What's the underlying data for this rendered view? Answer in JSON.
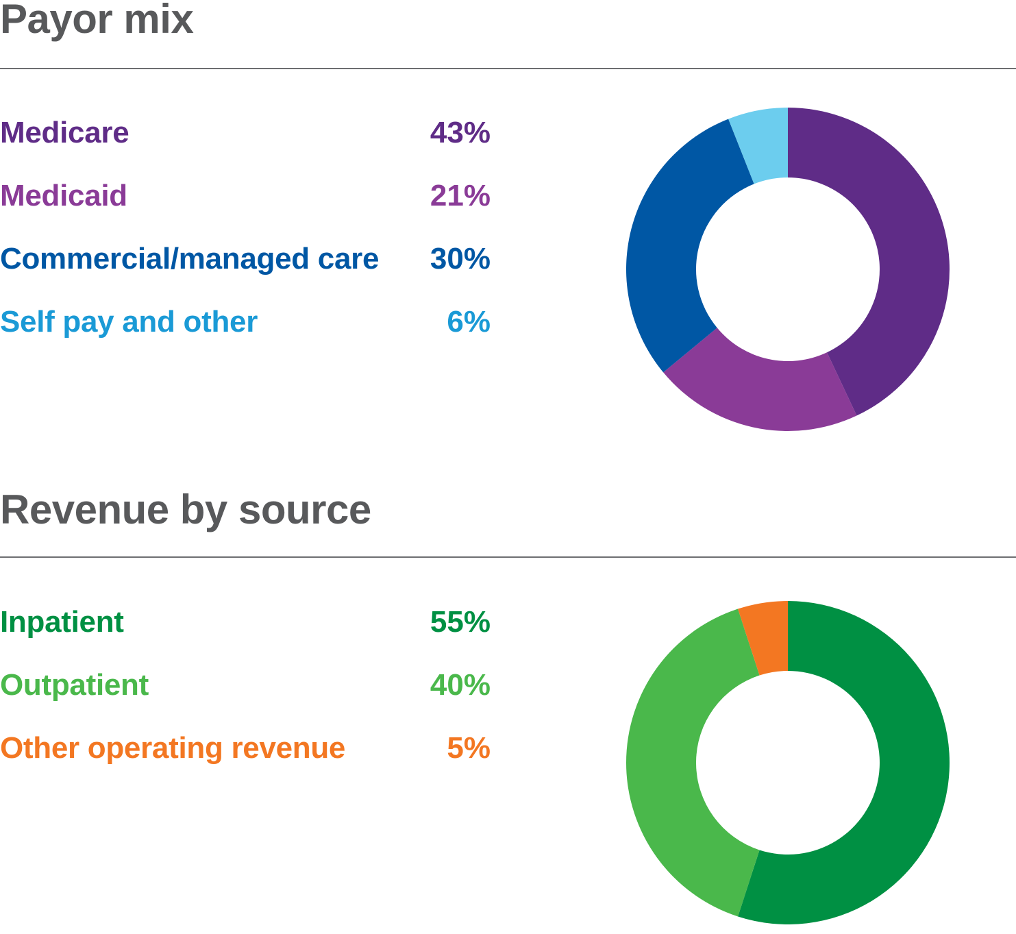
{
  "chart_data": [
    {
      "type": "pie",
      "title": "Payor mix",
      "categories": [
        "Medicare",
        "Medicaid",
        "Commercial/managed care",
        "Self pay and other"
      ],
      "values": [
        43,
        21,
        30,
        6
      ],
      "value_labels": [
        "43%",
        "21%",
        "30%",
        "6%"
      ],
      "colors": [
        "#5f2c87",
        "#8a3b97",
        "#0057a4",
        "#6ccdee"
      ],
      "label_colors": [
        "#5f2c87",
        "#8a3b97",
        "#0057a4",
        "#1a9ad6"
      ],
      "legend_position": "left",
      "style": "donut"
    },
    {
      "type": "pie",
      "title": "Revenue by source",
      "categories": [
        "Inpatient",
        "Outpatient",
        "Other operating revenue"
      ],
      "values": [
        55,
        40,
        5
      ],
      "value_labels": [
        "55%",
        "40%",
        "5%"
      ],
      "colors": [
        "#009043",
        "#4ab84b",
        "#f37722"
      ],
      "label_colors": [
        "#009043",
        "#4ab84b",
        "#f37722"
      ],
      "legend_position": "left",
      "style": "donut"
    }
  ]
}
